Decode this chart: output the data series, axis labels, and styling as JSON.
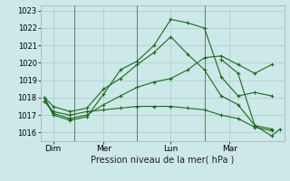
{
  "bg_color": "#cce8e8",
  "grid_color": "#aacccc",
  "line_color": "#1a6b1a",
  "marker_color": "#1a6b1a",
  "xlabel": "Pression niveau de la mer( hPa )",
  "ytick_fontsize": 6,
  "xtick_fontsize": 6.5,
  "xlabel_fontsize": 7,
  "ylim": [
    1015.5,
    1023.3
  ],
  "yticks": [
    1016,
    1017,
    1018,
    1019,
    1020,
    1021,
    1022,
    1023
  ],
  "xlim": [
    -0.5,
    28.5
  ],
  "xtick_positions": [
    1,
    7,
    15,
    22
  ],
  "xtick_labels": [
    "Dim",
    "Mer",
    "Lun",
    "Mar"
  ],
  "vline_positions": [
    3.5,
    11,
    19
  ],
  "series": [
    {
      "x": [
        0,
        1,
        3,
        5,
        7,
        9,
        11,
        13,
        15,
        17,
        19,
        21,
        23,
        25,
        27
      ],
      "y": [
        1018.0,
        1017.0,
        1016.7,
        1016.9,
        1018.2,
        1019.6,
        1020.1,
        1021.0,
        1022.5,
        1022.3,
        1022.0,
        1019.2,
        1018.1,
        1018.3,
        1018.1
      ]
    },
    {
      "x": [
        0,
        1,
        3,
        5,
        7,
        9,
        11,
        13,
        15,
        17,
        19,
        21,
        23,
        25,
        27
      ],
      "y": [
        1018.0,
        1017.5,
        1017.2,
        1017.4,
        1018.5,
        1019.1,
        1019.9,
        1020.6,
        1021.5,
        1020.5,
        1019.6,
        1018.1,
        1017.6,
        1016.4,
        1016.2
      ]
    },
    {
      "x": [
        0,
        1,
        3,
        5,
        7,
        9,
        11,
        13,
        15,
        17,
        19,
        21,
        23,
        25,
        27
      ],
      "y": [
        1017.8,
        1017.2,
        1017.0,
        1017.2,
        1017.3,
        1017.4,
        1017.5,
        1017.5,
        1017.5,
        1017.4,
        1017.3,
        1017.0,
        1016.8,
        1016.3,
        1016.1
      ]
    },
    {
      "x": [
        0,
        1,
        3,
        5,
        7,
        9,
        11,
        13,
        15,
        17,
        19,
        21,
        23,
        25,
        27
      ],
      "y": [
        1017.8,
        1017.1,
        1016.8,
        1017.0,
        1017.6,
        1018.1,
        1018.6,
        1018.9,
        1019.1,
        1019.6,
        1020.3,
        1020.4,
        1019.9,
        1019.4,
        1019.9
      ]
    },
    {
      "x": [
        21,
        23,
        25,
        27,
        28
      ],
      "y": [
        1020.2,
        1019.4,
        1016.4,
        1015.8,
        1016.2
      ]
    }
  ]
}
